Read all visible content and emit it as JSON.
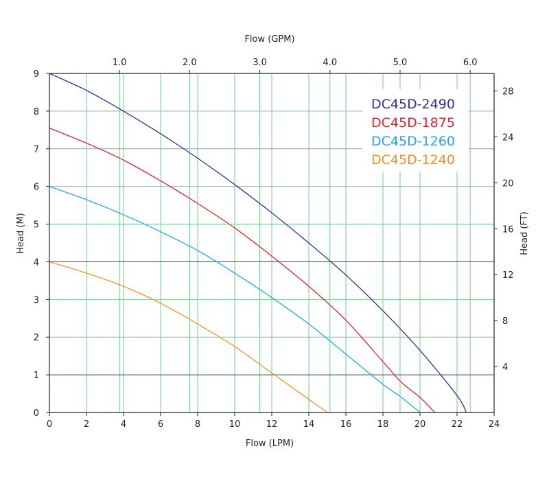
{
  "chart_data": {
    "type": "line",
    "x_bottom": {
      "label": "Flow (LPM)",
      "range": [
        0,
        24
      ],
      "ticks": [
        0,
        2,
        4,
        6,
        8,
        10,
        12,
        14,
        16,
        18,
        20,
        22,
        24
      ]
    },
    "x_top": {
      "label": "Flow (GPM)",
      "ticks": [
        1.0,
        2.0,
        3.0,
        4.0,
        5.0,
        6.0
      ],
      "tick_labels": [
        "1.0",
        "2.0",
        "3.0",
        "4.0",
        "5.0",
        "6.0"
      ]
    },
    "y_left": {
      "label": "Head (M)",
      "range": [
        0,
        9
      ],
      "ticks": [
        0,
        1,
        2,
        3,
        4,
        5,
        6,
        7,
        8,
        9
      ]
    },
    "y_right": {
      "label": "Head (FT)",
      "ticks": [
        4,
        8,
        12,
        16,
        20,
        24,
        28
      ]
    },
    "grid": true,
    "legend_position": "top-right",
    "series": [
      {
        "name": "DC45D-2490",
        "color": "#2e3192",
        "x": [
          0,
          2,
          4,
          6,
          8,
          10,
          12,
          14,
          16,
          18,
          20,
          22,
          22.5
        ],
        "y": [
          9.0,
          8.55,
          8.0,
          7.4,
          6.75,
          6.05,
          5.3,
          4.5,
          3.65,
          2.7,
          1.65,
          0.45,
          0
        ]
      },
      {
        "name": "DC45D-1875",
        "color": "#e0212e",
        "x": [
          0,
          2,
          4,
          6,
          8,
          10,
          12,
          14,
          16,
          18,
          19,
          20,
          20.8
        ],
        "y": [
          7.55,
          7.15,
          6.7,
          6.15,
          5.55,
          4.9,
          4.15,
          3.35,
          2.45,
          1.35,
          0.8,
          0.4,
          0
        ]
      },
      {
        "name": "DC45D-1260",
        "color": "#1ca8e0",
        "x": [
          0,
          2,
          4,
          6,
          8,
          10,
          12,
          14,
          16,
          18,
          19,
          20
        ],
        "y": [
          6.0,
          5.65,
          5.25,
          4.8,
          4.3,
          3.7,
          3.05,
          2.35,
          1.55,
          0.75,
          0.4,
          0
        ]
      },
      {
        "name": "DC45D-1240",
        "color": "#f0922a",
        "x": [
          0,
          2,
          4,
          6,
          8,
          10,
          12,
          13,
          14,
          15
        ],
        "y": [
          4.0,
          3.7,
          3.35,
          2.9,
          2.35,
          1.75,
          1.05,
          0.7,
          0.35,
          0
        ]
      }
    ]
  }
}
